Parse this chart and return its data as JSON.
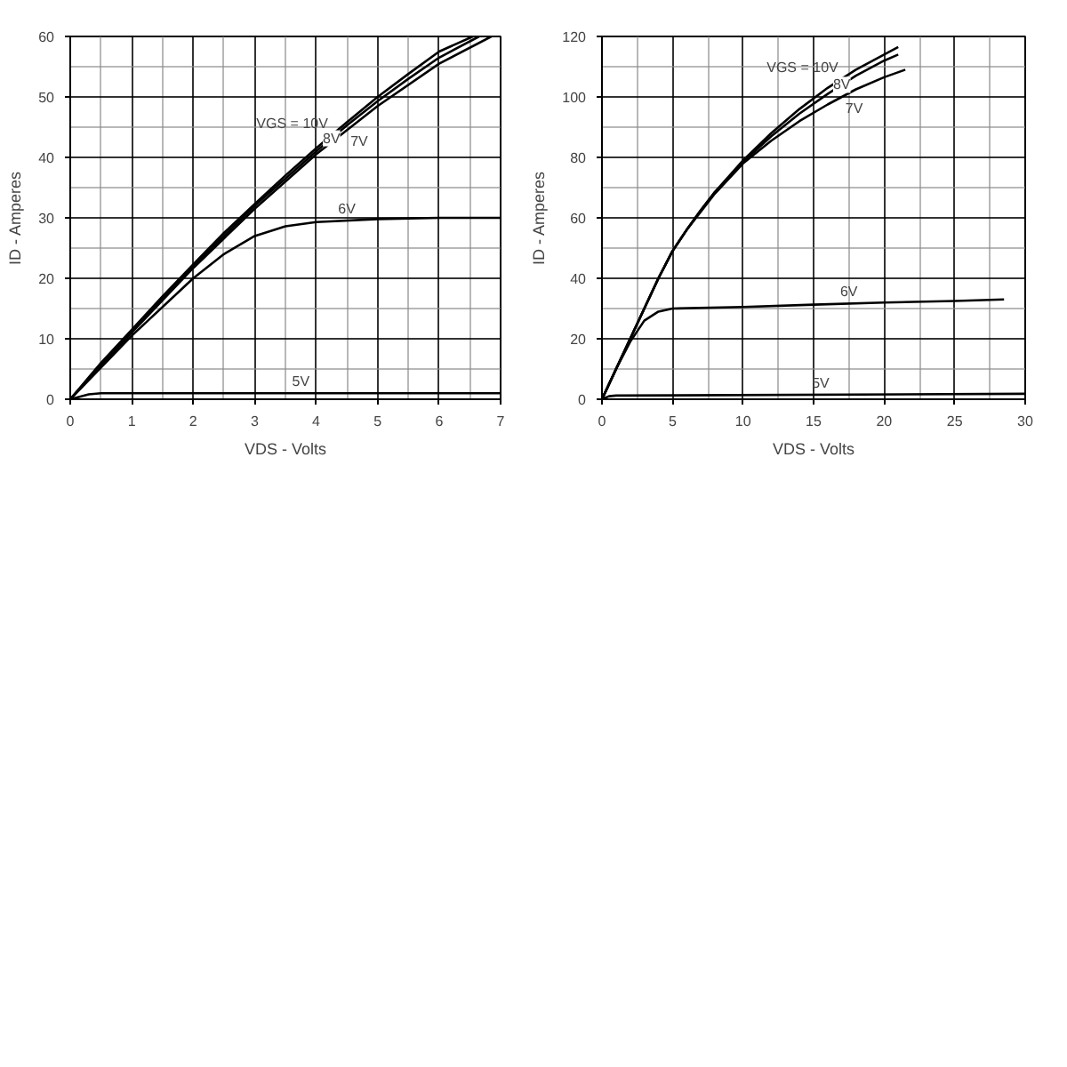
{
  "chart_data": [
    {
      "type": "line",
      "xlabel": "VDS - Volts",
      "ylabel": "ID - Amperes",
      "xlim": [
        0,
        7
      ],
      "ylim": [
        0,
        60
      ],
      "xticks": [
        0,
        1,
        2,
        3,
        4,
        5,
        6,
        7
      ],
      "yticks": [
        0,
        10,
        20,
        30,
        40,
        50,
        60
      ],
      "grid": true,
      "line_style": "solid",
      "series": [
        {
          "name": "VGS = 10V",
          "color": "#000000",
          "x": [
            0,
            0.5,
            1,
            1.5,
            2,
            2.5,
            3,
            3.5,
            4,
            4.5,
            5,
            5.5,
            6,
            6.55
          ],
          "values": [
            0,
            6,
            11.5,
            17,
            22.3,
            27.5,
            32.3,
            37,
            41.5,
            45.8,
            50,
            53.8,
            57.5,
            60
          ]
        },
        {
          "name": "8V",
          "color": "#000000",
          "x": [
            0,
            1,
            2,
            3,
            4,
            4.5,
            5,
            5.5,
            6,
            6.65
          ],
          "values": [
            0,
            11.3,
            22,
            32,
            41,
            45.3,
            49.3,
            53,
            56.5,
            60
          ]
        },
        {
          "name": "7V",
          "color": "#000000",
          "x": [
            0,
            1,
            2,
            3,
            4,
            5,
            6,
            6.85
          ],
          "values": [
            0,
            11,
            21.7,
            31.5,
            40.5,
            48.5,
            55.5,
            60
          ]
        },
        {
          "name": "6V",
          "color": "#000000",
          "x": [
            0,
            1,
            2,
            2.5,
            3,
            3.5,
            4,
            5,
            6,
            7
          ],
          "values": [
            0,
            10.5,
            20,
            24,
            27,
            28.6,
            29.3,
            29.8,
            30,
            30
          ]
        },
        {
          "name": "5V",
          "color": "#000000",
          "x": [
            0,
            0.3,
            0.5,
            7
          ],
          "values": [
            0,
            0.8,
            1,
            1
          ]
        }
      ]
    },
    {
      "type": "line",
      "xlabel": "VDS - Volts",
      "ylabel": "ID - Amperes",
      "xlim": [
        0,
        30
      ],
      "ylim": [
        0,
        120
      ],
      "xticks": [
        0,
        5,
        10,
        15,
        20,
        25,
        30
      ],
      "yticks": [
        0,
        20,
        40,
        60,
        80,
        100,
        120
      ],
      "grid": true,
      "line_style": "solid",
      "series": [
        {
          "name": "VGS = 10V",
          "color": "#000000",
          "x": [
            0,
            1,
            2,
            3,
            4,
            5,
            6,
            7,
            8,
            10,
            12,
            14,
            16,
            18,
            20,
            21
          ],
          "values": [
            0,
            10,
            20,
            30,
            40,
            49,
            56,
            62.5,
            68.5,
            79,
            88,
            96,
            103,
            109,
            114,
            116.5
          ]
        },
        {
          "name": "8V",
          "color": "#000000",
          "x": [
            0,
            1,
            2,
            3,
            4,
            5,
            6,
            7,
            8,
            10,
            12,
            14,
            16,
            18,
            20,
            21
          ],
          "values": [
            0,
            10,
            20,
            30,
            40,
            49,
            56,
            62.5,
            68.5,
            78.5,
            87,
            94.5,
            101,
            107,
            112,
            114
          ]
        },
        {
          "name": "7V",
          "color": "#000000",
          "x": [
            0,
            1,
            2,
            3,
            4,
            5,
            6,
            7,
            8,
            10,
            12,
            14,
            16,
            18,
            20,
            21.5
          ],
          "values": [
            0,
            10,
            20,
            30,
            40,
            49,
            56,
            62,
            68,
            78,
            85.5,
            92,
            97.5,
            102.5,
            106.5,
            109
          ]
        },
        {
          "name": "6V",
          "color": "#000000",
          "x": [
            0,
            1,
            2,
            3,
            4,
            5,
            10,
            15,
            20,
            25,
            28.5
          ],
          "values": [
            0,
            10,
            19,
            26,
            29,
            30,
            30.5,
            31.3,
            32,
            32.5,
            33
          ]
        },
        {
          "name": "5V",
          "color": "#000000",
          "x": [
            0,
            0.5,
            1,
            30
          ],
          "values": [
            0,
            1,
            1.2,
            1.8
          ]
        }
      ]
    }
  ]
}
